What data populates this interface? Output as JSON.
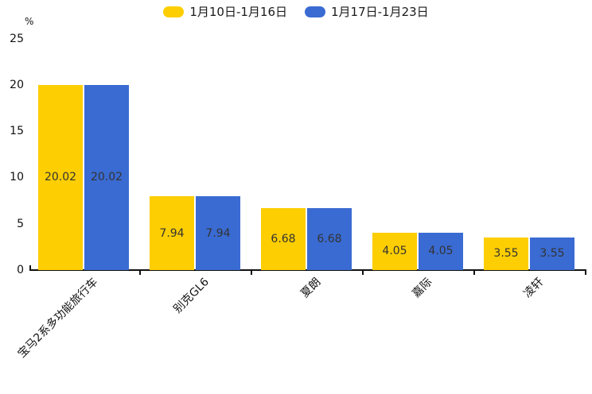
{
  "legend": [
    {
      "label": "1月10日-1月16日",
      "color": "#FDCE02"
    },
    {
      "label": "1月17日-1月23日",
      "color": "#3A6BD2"
    }
  ],
  "y_axis": {
    "unit": "%",
    "ticks": [
      25,
      20,
      15,
      10,
      5,
      0
    ]
  },
  "colors": {
    "bar_yellow": "#FDCE02",
    "bar_blue": "#3A6BD2",
    "axis": "#111111",
    "value_label": "#333333"
  },
  "chart_data": {
    "type": "bar",
    "title": "",
    "xlabel": "",
    "ylabel": "%",
    "ylim": [
      0,
      25
    ],
    "y_tick_step": 5,
    "grid": false,
    "legend_position": "top-center",
    "categories": [
      "宝马2系多功能旅行车",
      "别克GL6",
      "夏朗",
      "嘉际",
      "凌轩"
    ],
    "series": [
      {
        "name": "1月10日-1月16日",
        "color": "#FDCE02",
        "values": [
          20.02,
          7.94,
          6.68,
          4.05,
          3.55
        ]
      },
      {
        "name": "1月17日-1月23日",
        "color": "#3A6BD2",
        "values": [
          20.02,
          7.94,
          6.68,
          4.05,
          3.55
        ]
      }
    ],
    "value_labels": [
      "20.02",
      "7.94",
      "6.68",
      "4.05",
      "3.55"
    ]
  }
}
